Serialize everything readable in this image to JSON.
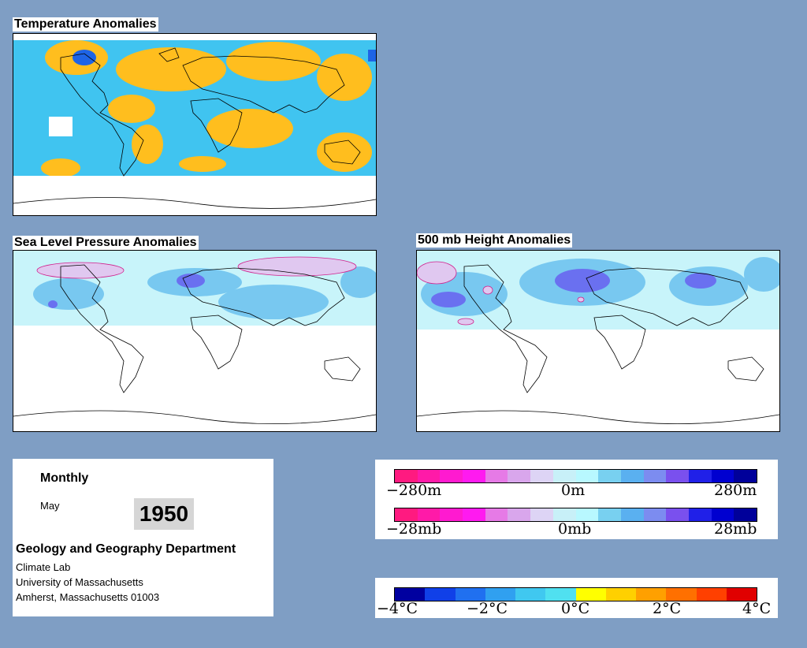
{
  "maps": {
    "temperature": {
      "title": "Temperature Anomalies"
    },
    "slp": {
      "title": "Sea Level Pressure Anomalies"
    },
    "height": {
      "title": "500 mb Height Anomalies"
    }
  },
  "info": {
    "period": "Monthly",
    "month": "May",
    "year": "1950",
    "department": "Geology and Geography Department",
    "lab": "Climate Lab",
    "university": "University of Massachusetts",
    "address": "Amherst, Massachusetts 01003"
  },
  "legend_height": {
    "colors": [
      "#ff1a80",
      "#ff1aa8",
      "#ff1ad0",
      "#ff1af0",
      "#e67ae6",
      "#d9a6ec",
      "#ddd4f5",
      "#c8f0f8",
      "#b8f8ff",
      "#78d0f0",
      "#5ab0f0",
      "#7c8cf0",
      "#7a50ee",
      "#2020e8",
      "#0000d0",
      "#00009a"
    ],
    "labels": [
      "−280m",
      "0m",
      "280m"
    ]
  },
  "legend_pressure": {
    "colors": [
      "#ff1a80",
      "#ff1aa8",
      "#ff1ad0",
      "#ff1af0",
      "#e67ae6",
      "#d9a6ec",
      "#ddd4f5",
      "#c8f0f8",
      "#b8f8ff",
      "#78d0f0",
      "#5ab0f0",
      "#7c8cf0",
      "#7a50ee",
      "#2020e8",
      "#0000d0",
      "#00009a"
    ],
    "labels": [
      "−28mb",
      "0mb",
      "28mb"
    ]
  },
  "legend_temperature": {
    "colors": [
      "#0000a0",
      "#1040e8",
      "#2070f0",
      "#30a0f0",
      "#40c8f0",
      "#50e0f0",
      "#ffff00",
      "#ffd000",
      "#ffa000",
      "#ff7000",
      "#ff4000",
      "#e00000"
    ],
    "labels": [
      "−4°C",
      "−2°C",
      "0°C",
      "2°C",
      "4°C"
    ]
  }
}
